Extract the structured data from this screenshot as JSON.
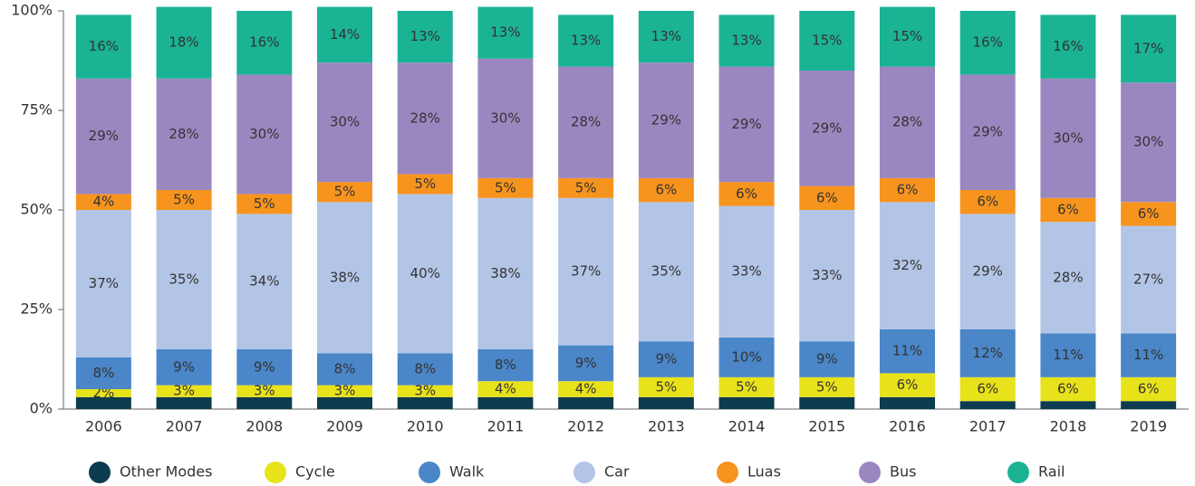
{
  "chart_data": {
    "type": "stacked_bar",
    "categories": [
      "2006",
      "2007",
      "2008",
      "2009",
      "2010",
      "2011",
      "2012",
      "2013",
      "2014",
      "2015",
      "2016",
      "2017",
      "2018",
      "2019"
    ],
    "series": [
      {
        "name": "Other Modes",
        "color": "#0d3b4f",
        "values": [
          3,
          3,
          3,
          3,
          3,
          3,
          3,
          3,
          3,
          3,
          3,
          2,
          2,
          2
        ]
      },
      {
        "name": "Cycle",
        "color": "#e8e21a",
        "values": [
          2,
          3,
          3,
          3,
          3,
          4,
          4,
          5,
          5,
          5,
          6,
          6,
          6,
          6
        ],
        "value_labels": [
          "2%",
          "3%",
          "3%",
          "3%",
          "3%",
          "4%",
          "4%",
          "5%",
          "5%",
          "5%",
          "6%",
          "6%",
          "6%",
          "6%"
        ]
      },
      {
        "name": "Walk",
        "color": "#4a86c8",
        "values": [
          8,
          9,
          9,
          8,
          8,
          8,
          9,
          9,
          10,
          9,
          11,
          12,
          11,
          11
        ],
        "value_labels": [
          "8%",
          "9%",
          "9%",
          "8%",
          "8%",
          "8%",
          "9%",
          "9%",
          "10%",
          "9%",
          "11%",
          "12%",
          "11%",
          "11%"
        ]
      },
      {
        "name": "Car",
        "color": "#b3c5e6",
        "values": [
          37,
          35,
          34,
          38,
          40,
          38,
          37,
          35,
          33,
          33,
          32,
          29,
          28,
          27
        ],
        "value_labels": [
          "37%",
          "35%",
          "34%",
          "38%",
          "40%",
          "38%",
          "37%",
          "35%",
          "33%",
          "33%",
          "32%",
          "29%",
          "28%",
          "27%"
        ]
      },
      {
        "name": "Luas",
        "color": "#f7941d",
        "values": [
          4,
          5,
          5,
          5,
          5,
          5,
          5,
          6,
          6,
          6,
          6,
          6,
          6,
          6
        ],
        "value_labels": [
          "4%",
          "5%",
          "5%",
          "5%",
          "5%",
          "5%",
          "5%",
          "6%",
          "6%",
          "6%",
          "6%",
          "6%",
          "6%",
          "6%"
        ]
      },
      {
        "name": "Bus",
        "color": "#9b87c0",
        "values": [
          29,
          28,
          30,
          30,
          28,
          30,
          28,
          29,
          29,
          29,
          28,
          29,
          30,
          30
        ],
        "value_labels": [
          "29%",
          "28%",
          "30%",
          "30%",
          "28%",
          "30%",
          "28%",
          "29%",
          "29%",
          "29%",
          "28%",
          "29%",
          "30%",
          "30%"
        ]
      },
      {
        "name": "Rail",
        "color": "#1ab394",
        "values": [
          16,
          18,
          16,
          14,
          13,
          13,
          13,
          13,
          13,
          15,
          15,
          16,
          16,
          17
        ],
        "value_labels": [
          "16%",
          "18%",
          "16%",
          "14%",
          "13%",
          "13%",
          "13%",
          "13%",
          "13%",
          "15%",
          "15%",
          "16%",
          "16%",
          "17%"
        ]
      }
    ],
    "ylim": [
      0,
      100
    ],
    "yticks": [
      {
        "value": 0,
        "label": "0%"
      },
      {
        "value": 25,
        "label": "25%"
      },
      {
        "value": 50,
        "label": "50%"
      },
      {
        "value": 75,
        "label": "75%"
      },
      {
        "value": 100,
        "label": "100%"
      }
    ],
    "grid": false
  }
}
